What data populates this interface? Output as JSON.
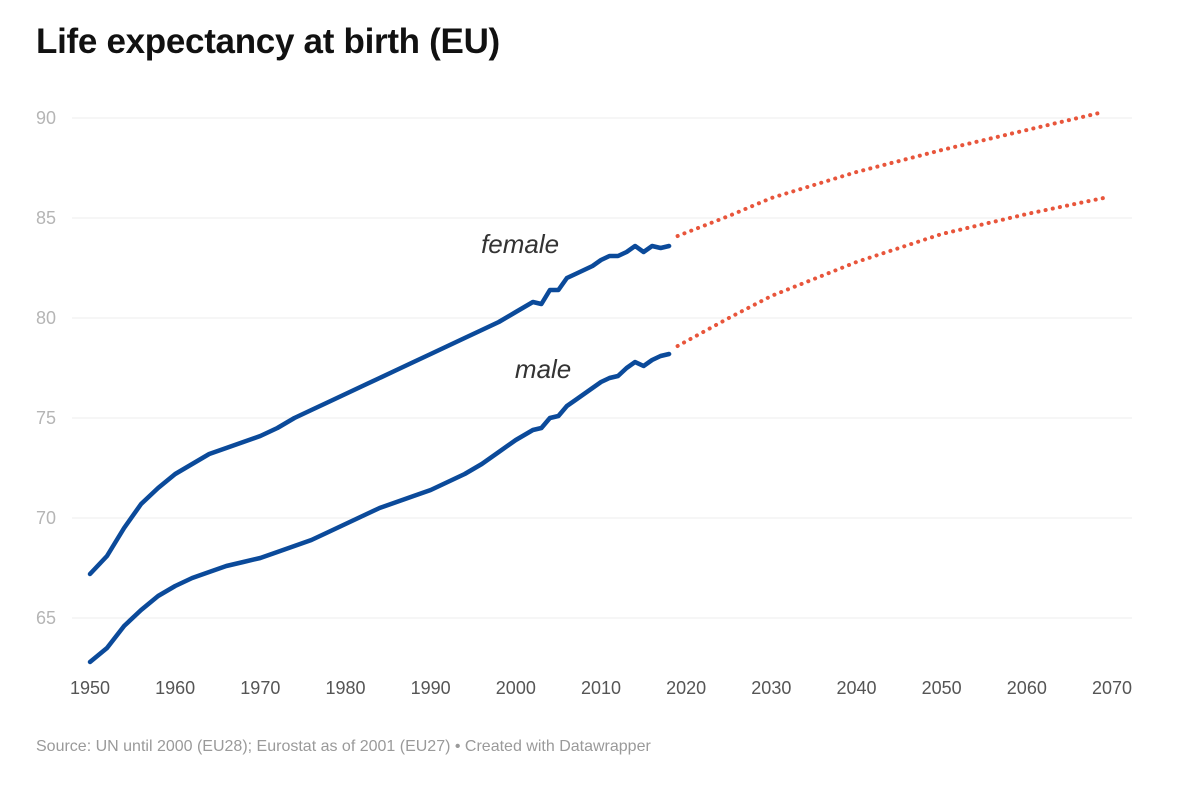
{
  "title": "Life expectancy at birth (EU)",
  "source": "Source: UN until 2000 (EU28); Eurostat as of 2001 (EU27) • Created with Datawrapper",
  "colors": {
    "observed": "#0b4a9a",
    "projection": "#e8553b",
    "grid": "#eeeeee",
    "tick_text": "#b5b5b5",
    "x_tick_text": "#555555",
    "label_text": "#333333"
  },
  "chart_data": {
    "type": "line",
    "title": "Life expectancy at birth (EU)",
    "xlabel": "",
    "ylabel": "",
    "xlim": [
      1950,
      2070
    ],
    "ylim": [
      62.5,
      90
    ],
    "grid": true,
    "x_ticks": [
      "1950",
      "1960",
      "1970",
      "1980",
      "1990",
      "2000",
      "2010",
      "2020",
      "2030",
      "2040",
      "2050",
      "2060",
      "2070"
    ],
    "y_ticks": [
      "65",
      "70",
      "75",
      "80",
      "85",
      "90"
    ],
    "series": [
      {
        "name": "female",
        "style": "solid",
        "x": [
          1950,
          1952,
          1954,
          1956,
          1958,
          1960,
          1962,
          1964,
          1966,
          1968,
          1970,
          1972,
          1974,
          1976,
          1978,
          1980,
          1982,
          1984,
          1986,
          1988,
          1990,
          1992,
          1994,
          1996,
          1998,
          2000,
          2002,
          2003,
          2004,
          2005,
          2006,
          2007,
          2008,
          2009,
          2010,
          2011,
          2012,
          2013,
          2014,
          2015,
          2016,
          2017,
          2018
        ],
        "y": [
          67.2,
          68.1,
          69.5,
          70.7,
          71.5,
          72.2,
          72.7,
          73.2,
          73.5,
          73.8,
          74.1,
          74.5,
          75.0,
          75.4,
          75.8,
          76.2,
          76.6,
          77.0,
          77.4,
          77.8,
          78.2,
          78.6,
          79.0,
          79.4,
          79.8,
          80.3,
          80.8,
          80.7,
          81.4,
          81.4,
          82.0,
          82.2,
          82.4,
          82.6,
          82.9,
          83.1,
          83.1,
          83.3,
          83.6,
          83.3,
          83.6,
          83.5,
          83.6
        ]
      },
      {
        "name": "male",
        "style": "solid",
        "x": [
          1950,
          1952,
          1954,
          1956,
          1958,
          1960,
          1962,
          1964,
          1966,
          1968,
          1970,
          1972,
          1974,
          1976,
          1978,
          1980,
          1982,
          1984,
          1986,
          1988,
          1990,
          1992,
          1994,
          1996,
          1998,
          2000,
          2002,
          2003,
          2004,
          2005,
          2006,
          2007,
          2008,
          2009,
          2010,
          2011,
          2012,
          2013,
          2014,
          2015,
          2016,
          2017,
          2018
        ],
        "y": [
          62.8,
          63.5,
          64.6,
          65.4,
          66.1,
          66.6,
          67.0,
          67.3,
          67.6,
          67.8,
          68.0,
          68.3,
          68.6,
          68.9,
          69.3,
          69.7,
          70.1,
          70.5,
          70.8,
          71.1,
          71.4,
          71.8,
          72.2,
          72.7,
          73.3,
          73.9,
          74.4,
          74.5,
          75.0,
          75.1,
          75.6,
          75.9,
          76.2,
          76.5,
          76.8,
          77.0,
          77.1,
          77.5,
          77.8,
          77.6,
          77.9,
          78.1,
          78.2
        ]
      },
      {
        "name": "",
        "style": "dotted",
        "x": [
          2019,
          2025,
          2030,
          2040,
          2050,
          2060,
          2069
        ],
        "y": [
          84.1,
          85.1,
          86.0,
          87.3,
          88.4,
          89.4,
          90.3
        ]
      },
      {
        "name": "",
        "style": "dotted",
        "x": [
          2019,
          2025,
          2030,
          2040,
          2050,
          2060,
          2069
        ],
        "y": [
          78.6,
          80.0,
          81.1,
          82.8,
          84.2,
          85.2,
          86.0
        ]
      }
    ],
    "annotations": [
      {
        "text": "female",
        "x": 2000.5,
        "y": 83.25
      },
      {
        "text": "male",
        "x": 2003.2,
        "y": 77.0
      }
    ]
  }
}
